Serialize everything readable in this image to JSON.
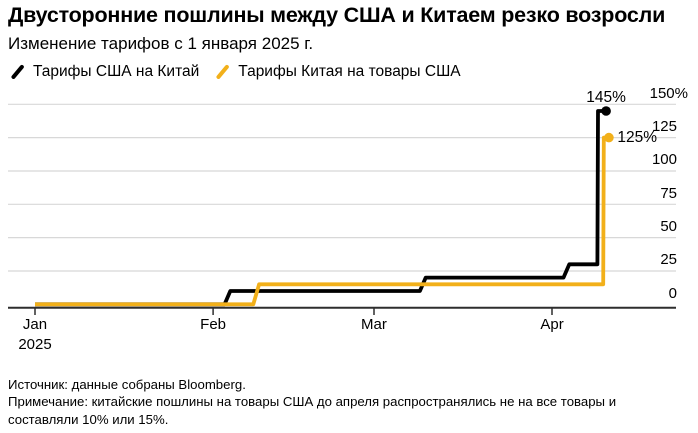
{
  "footer": {
    "source": "Источник: данные собраны Bloomberg.",
    "note": "Примечание: китайские пошлины на товары США до апреля распространялись не на все товары и составляли 10% или 15%."
  },
  "colors": {
    "us_line": "#000000",
    "china_line": "#F2B01A",
    "gridline": "#D8D8D8",
    "axis": "#2E2E2E"
  },
  "chart_data": {
    "type": "line",
    "step_style": true,
    "title": "Двусторонние пошлины между США и Китаем резко возросли",
    "subtitle": "Изменение тарифов с 1 января 2025 г.",
    "grid": true,
    "legend_position": "top-left",
    "x_axis": {
      "unit": "days since Jan 1, 2025",
      "months": [
        {
          "label": "Jan",
          "day": 0
        },
        {
          "label": "Feb",
          "day": 31
        },
        {
          "label": "Mar",
          "day": 59
        },
        {
          "label": "Apr",
          "day": 90
        }
      ],
      "year_label": "2025"
    },
    "y_axis": {
      "unit": "%",
      "ylim": [
        0,
        150
      ],
      "ticks": [
        0,
        25,
        50,
        75,
        100,
        125,
        150
      ],
      "tick_labels": [
        "0",
        "25",
        "50",
        "75",
        "100",
        "125",
        "150%"
      ],
      "labels_position": "right"
    },
    "series": [
      {
        "name": "Тарифы США на Китай",
        "color": "#000000",
        "steps": [
          {
            "day": 0,
            "value": 0
          },
          {
            "day": 34,
            "value": 10
          },
          {
            "day": 68,
            "value": 20
          },
          {
            "day": 93,
            "value": 30
          },
          {
            "day": 98,
            "value": 145
          }
        ],
        "end_day": 99.4,
        "end_value": 145,
        "end_label": "145%",
        "end_label_position": "above"
      },
      {
        "name": "Тарифы Китая на товары США",
        "color": "#F2B01A",
        "steps": [
          {
            "day": 0,
            "value": 0
          },
          {
            "day": 39,
            "value": 15
          },
          {
            "day": 99,
            "value": 125
          }
        ],
        "end_day": 99.9,
        "end_value": 125,
        "end_label": "125%",
        "end_label_position": "right"
      }
    ]
  }
}
